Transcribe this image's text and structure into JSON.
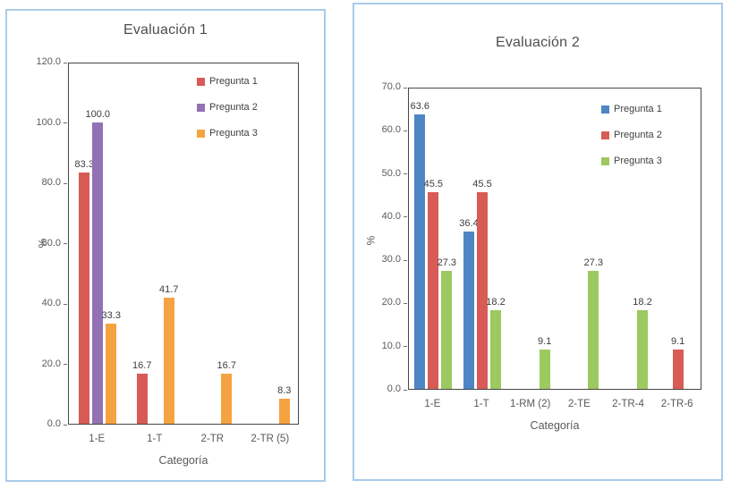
{
  "page": {
    "background": "#ffffff",
    "panel_border_color": "#A9CBE9",
    "plot_border_color": "#464646"
  },
  "chart_data": [
    {
      "type": "bar",
      "title": "Evaluación 1",
      "xlabel": "Categoría",
      "ylabel": "%",
      "ylim": [
        0,
        120
      ],
      "ystep": 20,
      "grid": false,
      "legend_position": "inside-top-right",
      "value_labels": true,
      "categories": [
        "1-E",
        "1-T",
        "2-TR",
        "2-TR (5)"
      ],
      "series": [
        {
          "name": "Pregunta 1",
          "color": "#D85B55",
          "values": [
            83.3,
            16.7,
            null,
            null
          ]
        },
        {
          "name": "Pregunta 2",
          "color": "#9272B4",
          "values": [
            100.0,
            null,
            null,
            null
          ]
        },
        {
          "name": "Pregunta 3",
          "color": "#F5A340",
          "values": [
            33.3,
            41.7,
            16.7,
            8.3
          ]
        }
      ]
    },
    {
      "type": "bar",
      "title": "Evaluación 2",
      "xlabel": "Categoría",
      "ylabel": "%",
      "ylim": [
        0,
        70
      ],
      "ystep": 10,
      "grid": false,
      "legend_position": "inside-top-right",
      "value_labels": true,
      "categories": [
        "1-E",
        "1-T",
        "1-RM (2)",
        "2-TE",
        "2-TR-4",
        "2-TR-6"
      ],
      "series": [
        {
          "name": "Pregunta 1",
          "color": "#4E86C4",
          "values": [
            63.6,
            36.4,
            null,
            null,
            null,
            null
          ]
        },
        {
          "name": "Pregunta 2",
          "color": "#D85B55",
          "values": [
            45.5,
            45.5,
            null,
            null,
            null,
            9.1
          ]
        },
        {
          "name": "Pregunta 3",
          "color": "#9DC961",
          "values": [
            27.3,
            18.2,
            9.1,
            27.3,
            18.2,
            null
          ]
        }
      ]
    }
  ]
}
